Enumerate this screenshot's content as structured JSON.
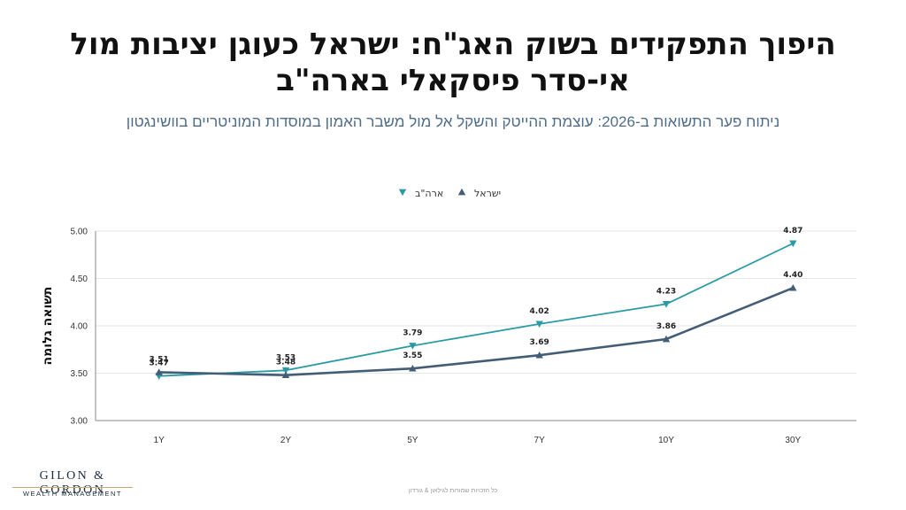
{
  "header": {
    "title_line1": "היפוך התפקידים בשוק האג\"ח: ישראל כעוגן יציבות מול",
    "title_line2": "אי-סדר פיסקאלי בארה\"ב",
    "subtitle": "ניתוח פער התשואות ב-2026: עוצמת ההייטק והשקל אל מול משבר האמון במוסדות המוניטריים בוושינגטון"
  },
  "chart_data": {
    "type": "line",
    "title": "",
    "xlabel": "",
    "ylabel": "תשואה גלומה",
    "categories": [
      "1Y",
      "2Y",
      "5Y",
      "7Y",
      "10Y",
      "30Y"
    ],
    "ylim": [
      3.0,
      5.0
    ],
    "yticks": [
      "3.00",
      "3.50",
      "4.00",
      "4.50",
      "5.00"
    ],
    "grid": true,
    "legend_position": "top-center",
    "series": [
      {
        "name": "ארה\"ב",
        "color": "#2a9ba5",
        "marker": "triangle-down",
        "values": [
          3.47,
          3.53,
          3.79,
          4.02,
          4.23,
          4.87
        ]
      },
      {
        "name": "ישראל",
        "color": "#435d76",
        "marker": "triangle-up",
        "values": [
          3.51,
          3.48,
          3.55,
          3.69,
          3.86,
          4.4
        ]
      }
    ],
    "data_labels": [
      [
        "3.47",
        "3.53",
        "3.79",
        "4.02",
        "4.23",
        "4.87"
      ],
      [
        "3.51",
        "3.48",
        "3.55",
        "3.69",
        "3.86",
        "4.40"
      ]
    ]
  },
  "footer": {
    "text": "כל הזכויות שמורות לגילאון & גורדון"
  },
  "logo": {
    "main": "GILON & GORDON",
    "sub": "WEALTH MANAGEMENT"
  }
}
